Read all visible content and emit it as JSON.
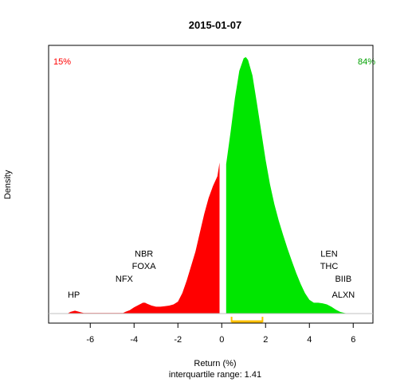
{
  "chart_data": {
    "type": "area",
    "title": "2015-01-07",
    "xlabel": "Return (%)",
    "ylabel": "Density",
    "subtitle": "interquartile range: 1.41",
    "xlim": [
      -7.9,
      6.9
    ],
    "ylim": [
      0,
      0.47
    ],
    "xticks": [
      -6,
      -4,
      -2,
      0,
      2,
      4,
      6
    ],
    "grid": false,
    "split_at": 0,
    "pct_negative_label": "15%",
    "pct_positive_label": "84%",
    "colors": {
      "negative": "#ff0000",
      "positive": "#00e600",
      "iqr": "#ffc000",
      "title": "#000000"
    },
    "iqr": [
      0.45,
      1.86
    ],
    "density": {
      "x": [
        -7.0,
        -6.9,
        -6.8,
        -6.7,
        -6.6,
        -6.5,
        -6.4,
        -6.3,
        -4.5,
        -4.4,
        -4.2,
        -4.0,
        -3.8,
        -3.6,
        -3.5,
        -3.4,
        -3.2,
        -3.0,
        -2.8,
        -2.6,
        -2.4,
        -2.2,
        -2.0,
        -1.8,
        -1.6,
        -1.4,
        -1.2,
        -1.0,
        -0.8,
        -0.6,
        -0.4,
        -0.2,
        -0.1,
        0.0,
        0.2,
        0.4,
        0.6,
        0.8,
        1.0,
        1.1,
        1.2,
        1.4,
        1.6,
        1.8,
        2.0,
        2.2,
        2.4,
        2.6,
        2.8,
        3.0,
        3.2,
        3.4,
        3.6,
        3.8,
        4.0,
        4.2,
        4.4,
        4.6,
        4.8,
        5.0,
        5.2,
        5.4,
        5.6,
        5.8,
        6.0,
        6.1
      ],
      "y": [
        0.001,
        0.003,
        0.004,
        0.005,
        0.004,
        0.003,
        0.002,
        0.001,
        0.001,
        0.003,
        0.006,
        0.011,
        0.015,
        0.019,
        0.019,
        0.017,
        0.014,
        0.012,
        0.012,
        0.013,
        0.014,
        0.016,
        0.021,
        0.036,
        0.058,
        0.083,
        0.109,
        0.142,
        0.175,
        0.203,
        0.224,
        0.241,
        0.265,
        0.222,
        0.262,
        0.318,
        0.378,
        0.426,
        0.448,
        0.45,
        0.445,
        0.418,
        0.37,
        0.32,
        0.27,
        0.227,
        0.192,
        0.163,
        0.138,
        0.114,
        0.092,
        0.071,
        0.052,
        0.036,
        0.024,
        0.019,
        0.019,
        0.018,
        0.016,
        0.012,
        0.007,
        0.003,
        0.001,
        0.0,
        0.0,
        0.0
      ]
    },
    "annotations": [
      {
        "label": "HP",
        "x": -6.75,
        "y": 0.028
      },
      {
        "label": "NFX",
        "x": -4.45,
        "y": 0.056
      },
      {
        "label": "FOXA",
        "x": -3.55,
        "y": 0.078
      },
      {
        "label": "NBR",
        "x": -3.55,
        "y": 0.1
      },
      {
        "label": "LEN",
        "x": 4.9,
        "y": 0.1
      },
      {
        "label": "THC",
        "x": 4.9,
        "y": 0.078
      },
      {
        "label": "BIIB",
        "x": 5.55,
        "y": 0.056
      },
      {
        "label": "ALXN",
        "x": 5.55,
        "y": 0.028
      }
    ]
  }
}
